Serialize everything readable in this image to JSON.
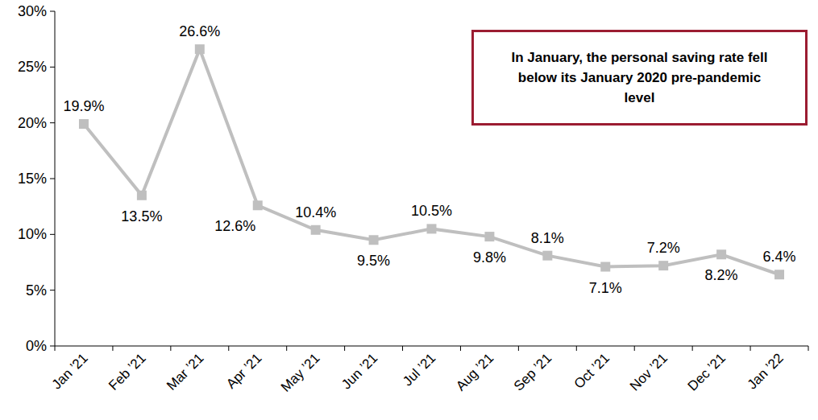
{
  "chart_data": {
    "type": "line",
    "annotation": "In January, the personal saving rate fell below its January 2020 pre-pandemic level",
    "categories": [
      "Jan ’21",
      "Feb ’21",
      "Mar ’21",
      "Apr ’21",
      "May ’21",
      "Jun ’21",
      "Jul ’21",
      "Aug ’21",
      "Sep ’21",
      "Oct ’21",
      "Nov ’21",
      "Dec ’21",
      "Jan ’22"
    ],
    "values": [
      19.9,
      13.5,
      26.6,
      12.6,
      10.4,
      9.5,
      10.5,
      9.8,
      8.1,
      7.1,
      7.2,
      8.2,
      6.4
    ],
    "value_labels": [
      "19.9%",
      "13.5%",
      "26.6%",
      "12.6%",
      "10.4%",
      "9.5%",
      "10.5%",
      "9.8%",
      "8.1%",
      "7.1%",
      "7.2%",
      "8.2%",
      "6.4%"
    ],
    "color": "#bfbfbf",
    "marker": "square",
    "line_style": "solid",
    "data_labels": true,
    "grid": false,
    "ylim": [
      0,
      30
    ],
    "yticks": [
      {
        "value": 0,
        "label": "0%"
      },
      {
        "value": 5,
        "label": "5%"
      },
      {
        "value": 10,
        "label": "10%"
      },
      {
        "value": 15,
        "label": "15%"
      },
      {
        "value": 20,
        "label": "20%"
      },
      {
        "value": 25,
        "label": "25%"
      },
      {
        "value": 30,
        "label": "30%"
      }
    ]
  }
}
